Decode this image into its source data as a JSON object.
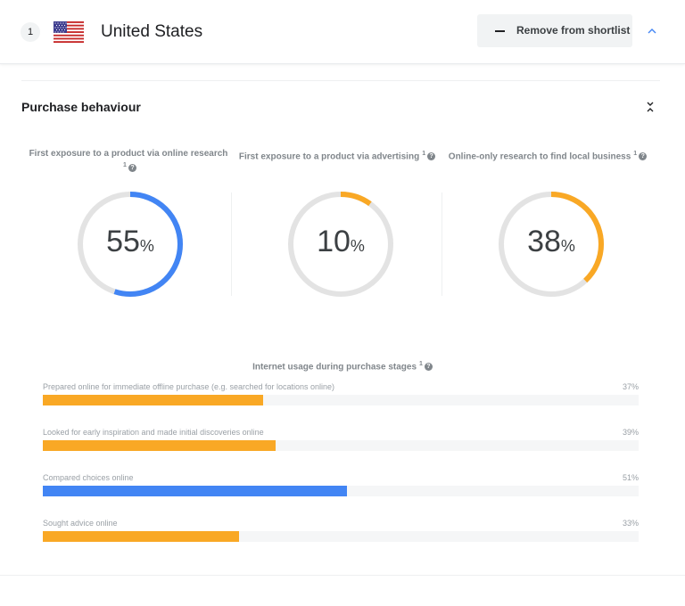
{
  "header": {
    "rank": "1",
    "country": "United States",
    "remove_label": "Remove from shortlist"
  },
  "section": {
    "title": "Purchase behaviour"
  },
  "colors": {
    "blue": "#4285f4",
    "orange": "#f9a825",
    "track": "#e3e3e3"
  },
  "donuts": [
    {
      "title": "First exposure to a product via online research",
      "note": "1",
      "value": 55,
      "value_text": "55",
      "unit": "%",
      "color": "blue"
    },
    {
      "title": "First exposure to a product via advertising",
      "note": "1",
      "value": 10,
      "value_text": "10",
      "unit": "%",
      "color": "orange"
    },
    {
      "title": "Online-only research to find local business",
      "note": "1",
      "value": 38,
      "value_text": "38",
      "unit": "%",
      "color": "orange"
    }
  ],
  "stages": {
    "title": "Internet usage during purchase stages",
    "note": "1",
    "items": [
      {
        "label": "Prepared online for immediate offline purchase (e.g. searched for locations online)",
        "value": 37,
        "value_text": "37%",
        "color": "orange"
      },
      {
        "label": "Looked for early inspiration and made initial discoveries online",
        "value": 39,
        "value_text": "39%",
        "color": "orange"
      },
      {
        "label": "Compared choices online",
        "value": 51,
        "value_text": "51%",
        "color": "blue"
      },
      {
        "label": "Sought advice online",
        "value": 33,
        "value_text": "33%",
        "color": "orange"
      }
    ]
  }
}
